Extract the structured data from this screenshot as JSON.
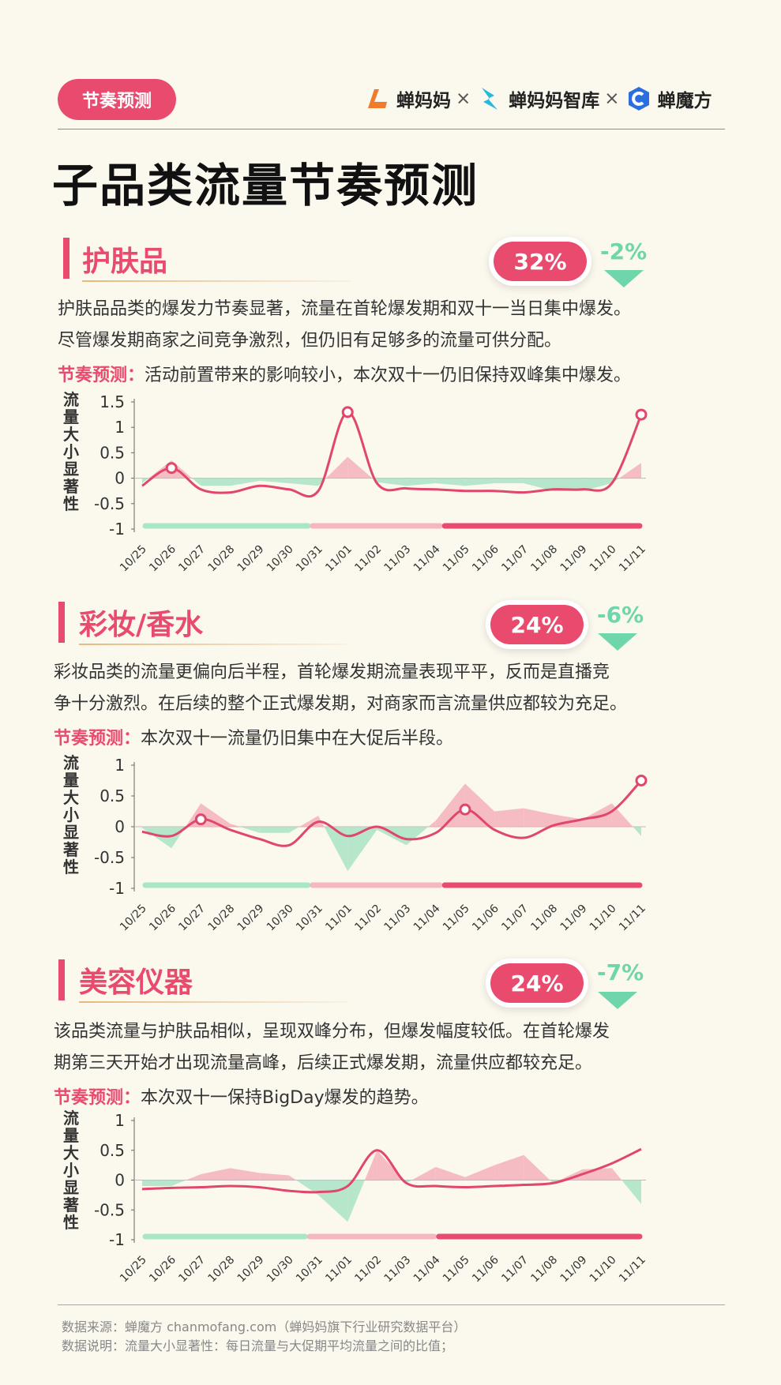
{
  "header": {
    "tag": "节奏预测",
    "brands": [
      "蝉妈妈",
      "蝉妈妈智库",
      "蝉魔方"
    ],
    "separator": "×"
  },
  "title": "子品类流量节奏预测",
  "sections": [
    {
      "title": "护肤品",
      "pct": "32%",
      "delta": "-2%",
      "para_lines": [
        "护肤品品类的爆发力节奏显著，流量在首轮爆发期和双十一当日集中爆发。",
        "尽管爆发期商家之间竞争激烈，但仍旧有足够多的流量可供分配。"
      ],
      "rhythm_key": "节奏预测：",
      "rhythm_text": "活动前置带来的影响较小，本次双十一仍旧保持双峰集中爆发。"
    },
    {
      "title": "彩妆/香水",
      "pct": "24%",
      "delta": "-6%",
      "para_lines": [
        "彩妆品类的流量更偏向后半程，首轮爆发期流量表现平平，反而是直播竞",
        "争十分激烈。在后续的整个正式爆发期，对商家而言流量供应都较为充足。"
      ],
      "rhythm_key": "节奏预测：",
      "rhythm_text": "本次双十一流量仍旧集中在大促后半段。"
    },
    {
      "title": "美容仪器",
      "pct": "24%",
      "delta": "-7%",
      "para_lines": [
        "该品类流量与护肤品相似，呈现双峰分布，但爆发幅度较低。在首轮爆发",
        "期第三天开始才出现流量高峰，后续正式爆发期，流量供应都较充足。"
      ],
      "rhythm_key": "节奏预测：",
      "rhythm_text": "本次双十一保持BigDay爆发的趋势。"
    }
  ],
  "chart_data": [
    {
      "type": "line",
      "ylabel": "流量大小显著性",
      "categories": [
        "10/25",
        "10/26",
        "10/27",
        "10/28",
        "10/29",
        "10/30",
        "10/31",
        "11/01",
        "11/02",
        "11/03",
        "11/04",
        "11/05",
        "11/06",
        "11/07",
        "11/08",
        "11/09",
        "11/10",
        "11/11"
      ],
      "yticks": [
        1.5,
        1,
        0.5,
        0,
        -0.5,
        -1
      ],
      "ylim": [
        -1,
        1.5
      ],
      "line": [
        -0.15,
        0.2,
        -0.22,
        -0.28,
        -0.15,
        -0.22,
        -0.25,
        1.3,
        -0.1,
        -0.2,
        -0.22,
        -0.25,
        -0.25,
        -0.28,
        -0.22,
        -0.22,
        -0.1,
        1.25
      ],
      "area": [
        -0.1,
        0.35,
        -0.15,
        -0.15,
        -0.05,
        -0.1,
        -0.15,
        0.42,
        -0.08,
        -0.15,
        -0.1,
        -0.15,
        -0.1,
        -0.1,
        -0.25,
        -0.25,
        -0.1,
        0.3
      ],
      "markers": [
        1,
        7,
        17
      ],
      "phases": [
        {
          "from": 0,
          "to": 5.7,
          "color": "#a9e6c6"
        },
        {
          "from": 5.7,
          "to": 10.2,
          "color": "#f5b8c3"
        },
        {
          "from": 10.2,
          "to": 17,
          "color": "#e94b6f"
        }
      ]
    },
    {
      "type": "line",
      "ylabel": "流量大小显著性",
      "categories": [
        "10/25",
        "10/26",
        "10/27",
        "10/28",
        "10/29",
        "10/30",
        "10/31",
        "11/01",
        "11/02",
        "11/03",
        "11/04",
        "11/05",
        "11/06",
        "11/07",
        "11/08",
        "11/09",
        "11/10",
        "11/11"
      ],
      "yticks": [
        1,
        0.5,
        0,
        -0.5,
        -1
      ],
      "ylim": [
        -1,
        1
      ],
      "line": [
        -0.08,
        -0.15,
        0.12,
        -0.05,
        -0.2,
        -0.3,
        0.08,
        -0.15,
        0.0,
        -0.2,
        -0.1,
        0.28,
        -0.05,
        -0.18,
        0.02,
        0.12,
        0.25,
        0.75
      ],
      "area": [
        -0.02,
        -0.35,
        0.38,
        0.05,
        -0.1,
        -0.1,
        0.18,
        -0.72,
        -0.05,
        -0.3,
        0.1,
        0.7,
        0.25,
        0.3,
        0.2,
        0.12,
        0.38,
        -0.15
      ],
      "markers": [
        2,
        11,
        17
      ],
      "phases": [
        {
          "from": 0,
          "to": 5.7,
          "color": "#a9e6c6"
        },
        {
          "from": 5.7,
          "to": 10.2,
          "color": "#f5b8c3"
        },
        {
          "from": 10.2,
          "to": 17,
          "color": "#e94b6f"
        }
      ]
    },
    {
      "type": "line",
      "ylabel": "流量大小显著性",
      "categories": [
        "10/25",
        "10/26",
        "10/27",
        "10/28",
        "10/29",
        "10/30",
        "10/31",
        "11/01",
        "11/02",
        "11/03",
        "11/04",
        "11/05",
        "11/06",
        "11/07",
        "11/08",
        "11/09",
        "11/10",
        "11/11"
      ],
      "yticks": [
        1,
        0.5,
        0,
        -0.5,
        -1
      ],
      "ylim": [
        -1,
        1
      ],
      "line": [
        -0.15,
        -0.13,
        -0.12,
        -0.1,
        -0.12,
        -0.18,
        -0.2,
        -0.1,
        0.5,
        -0.05,
        -0.1,
        -0.12,
        -0.1,
        -0.08,
        -0.05,
        0.1,
        0.28,
        0.52
      ],
      "area": [
        -0.1,
        -0.1,
        0.1,
        0.2,
        0.12,
        0.08,
        -0.25,
        -0.7,
        0.5,
        -0.05,
        0.22,
        0.05,
        0.25,
        0.42,
        -0.05,
        0.18,
        0.2,
        -0.4
      ],
      "markers": [],
      "phases": [
        {
          "from": 0,
          "to": 5.6,
          "color": "#a9e6c6"
        },
        {
          "from": 5.6,
          "to": 10.0,
          "color": "#f5b8c3"
        },
        {
          "from": 10.0,
          "to": 17,
          "color": "#e94b6f"
        }
      ]
    }
  ],
  "footer": {
    "source": "数据来源：蝉魔方 chanmofang.com（蝉妈妈旗下行业研究数据平台）",
    "note": "数据说明：流量大小显著性：每日流量与大促期平均流量之间的比值；"
  }
}
